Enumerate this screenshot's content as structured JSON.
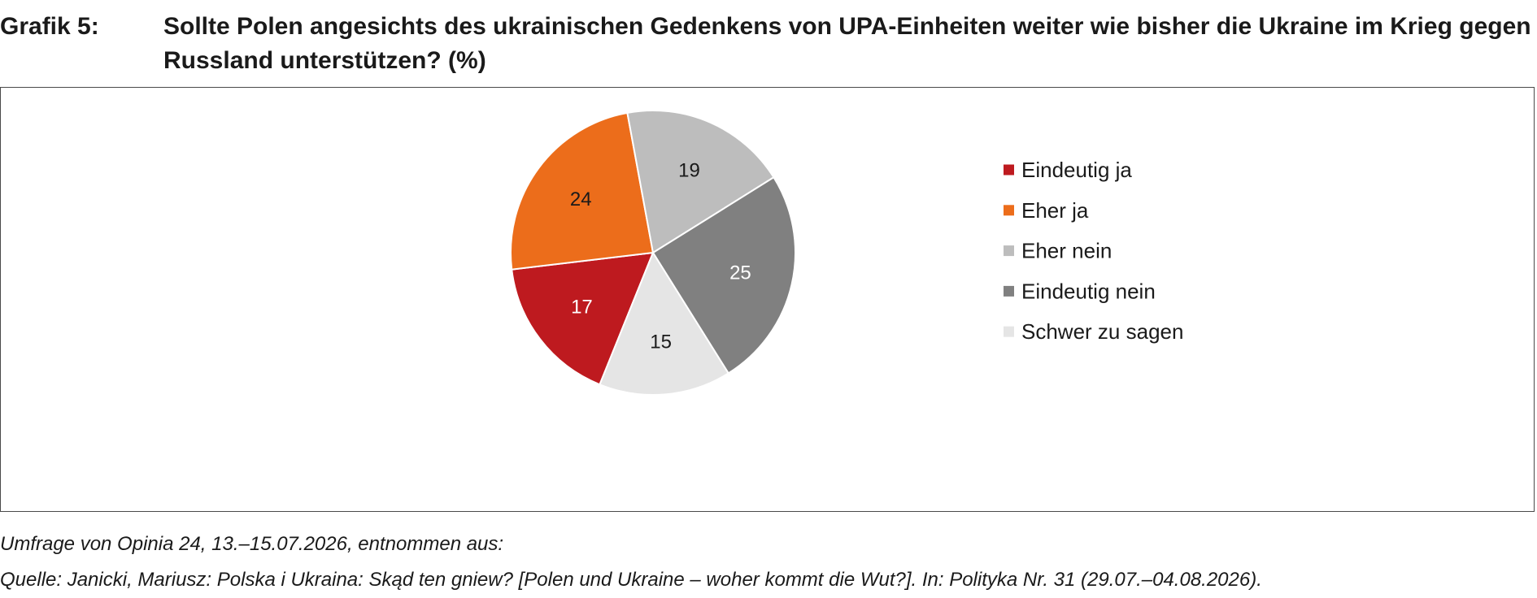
{
  "header": {
    "label": "Grafik 5:",
    "title": "Sollte Polen angesichts des ukrainischen Gedenkens von UPA-Einheiten weiter wie bisher die Ukraine im Krieg gegen Russland unterstützen? (%)"
  },
  "chart_data": {
    "type": "pie",
    "title": "Sollte Polen angesichts des ukrainischen Gedenkens von UPA-Einheiten weiter wie bisher die Ukraine im Krieg gegen Russland unterstützen? (%)",
    "legend_position": "right",
    "start_angle_deg": 248,
    "direction": "clockwise",
    "slices": [
      {
        "label": "Eindeutig ja",
        "value": 17,
        "color": "#be1a1f",
        "label_color": "#ffffff"
      },
      {
        "label": "Eher ja",
        "value": 24,
        "color": "#ec6d1b",
        "label_color": "#1a1a1a"
      },
      {
        "label": "Eher nein",
        "value": 19,
        "color": "#bdbdbd",
        "label_color": "#1a1a1a"
      },
      {
        "label": "Eindeutig nein",
        "value": 25,
        "color": "#808080",
        "label_color": "#ffffff"
      },
      {
        "label": "Schwer zu sagen",
        "value": 15,
        "color": "#e5e5e5",
        "label_color": "#1a1a1a"
      }
    ]
  },
  "footer": {
    "survey": "Umfrage von Opinia 24, 13.–15.07.2026, entnommen aus:",
    "source": "Quelle: Janicki, Mariusz: Polska i Ukraina: Skąd ten gniew? [Polen und Ukraine – woher kommt die Wut?]. In: Polityka Nr. 31 (29.07.–04.08.2026)."
  }
}
